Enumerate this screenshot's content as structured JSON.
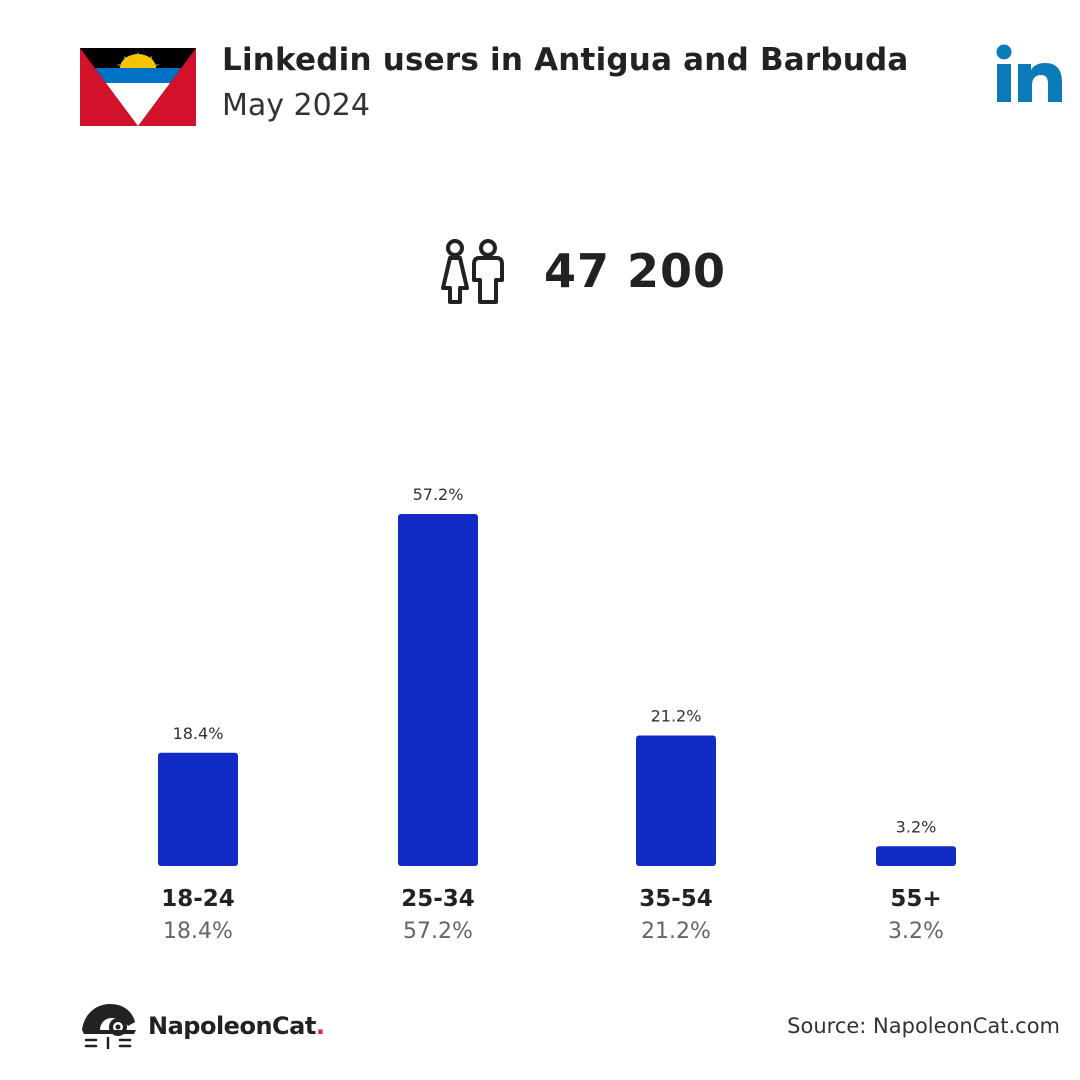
{
  "header": {
    "title": "Linkedin users in Antigua and Barbuda",
    "subtitle": "May 2024",
    "flag_icon": "antigua-and-barbuda-flag-icon",
    "brand_icon": "linkedin-logo-icon"
  },
  "summary": {
    "icon": "users-icon",
    "total_users": "47 200"
  },
  "chart_data": {
    "type": "bar",
    "title": "",
    "xlabel": "",
    "ylabel": "",
    "categories": [
      "18-24",
      "25-34",
      "35-54",
      "55+"
    ],
    "values": [
      18.4,
      57.2,
      21.2,
      3.2
    ],
    "value_labels": [
      "18.4%",
      "57.2%",
      "21.2%",
      "3.2%"
    ],
    "ylim": [
      0,
      57.2
    ],
    "grid": false,
    "bar_color": "#0f2bc4"
  },
  "footer": {
    "brand_name": "NapoleonCat",
    "brand_dot": ".",
    "source": "Source: NapoleonCat.com"
  },
  "colors": {
    "flag_black": "#000000",
    "flag_red": "#d2112b",
    "flag_blue": "#0072c6",
    "flag_gold": "#f5c400",
    "linkedin_blue": "#0a7ab8"
  }
}
